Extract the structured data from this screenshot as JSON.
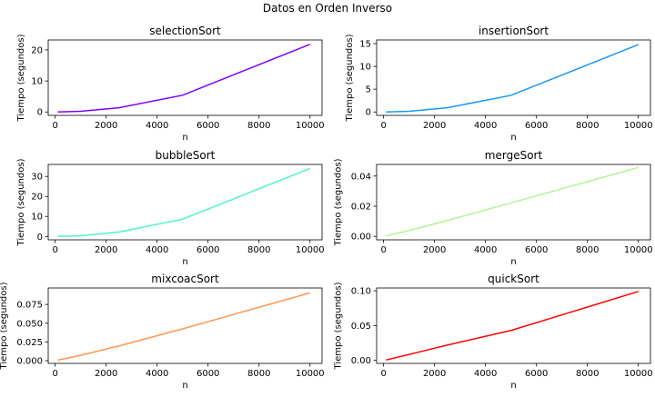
{
  "figure": {
    "suptitle": "Datos en Orden Inverso"
  },
  "chart_data": [
    {
      "type": "line",
      "title": "selectionSort",
      "xlabel": "n",
      "ylabel": "Tiempo (segundos)",
      "color": "#7f00ff",
      "x": [
        100,
        1000,
        2500,
        5000,
        10000
      ],
      "y": [
        0.002,
        0.22,
        1.35,
        5.4,
        21.8
      ],
      "xlim": [
        -273,
        10473
      ],
      "ylim": [
        -1.1,
        23.2
      ],
      "xticks": [
        0,
        2000,
        4000,
        6000,
        8000,
        10000
      ],
      "xtick_labels": [
        "0",
        "2000",
        "4000",
        "6000",
        "8000",
        "10000"
      ],
      "yticks": [
        0,
        10,
        20
      ],
      "ytick_labels": [
        "0",
        "10",
        "20"
      ],
      "grid": false
    },
    {
      "type": "line",
      "title": "insertionSort",
      "xlabel": "n",
      "ylabel": "Tiempo (segundos)",
      "color": "#1996f3",
      "x": [
        100,
        1000,
        2500,
        5000,
        10000
      ],
      "y": [
        0.001,
        0.15,
        0.92,
        3.65,
        14.8
      ],
      "xlim": [
        -273,
        10473
      ],
      "ylim": [
        -0.75,
        15.8
      ],
      "xticks": [
        0,
        2000,
        4000,
        6000,
        8000,
        10000
      ],
      "xtick_labels": [
        "0",
        "2000",
        "4000",
        "6000",
        "8000",
        "10000"
      ],
      "yticks": [
        0,
        5,
        10,
        15
      ],
      "ytick_labels": [
        "0",
        "5",
        "10",
        "15"
      ],
      "grid": false
    },
    {
      "type": "line",
      "title": "bubbleSort",
      "xlabel": "n",
      "ylabel": "Tiempo (segundos)",
      "color": "#4df3ce",
      "x": [
        100,
        1000,
        2500,
        5000,
        10000
      ],
      "y": [
        0.003,
        0.35,
        2.2,
        8.6,
        34.0
      ],
      "xlim": [
        -273,
        10473
      ],
      "ylim": [
        -1.7,
        36.0
      ],
      "xticks": [
        0,
        2000,
        4000,
        6000,
        8000,
        10000
      ],
      "xtick_labels": [
        "0",
        "2000",
        "4000",
        "6000",
        "8000",
        "10000"
      ],
      "yticks": [
        0,
        10,
        20,
        30
      ],
      "ytick_labels": [
        "0",
        "10",
        "20",
        "30"
      ],
      "grid": false
    },
    {
      "type": "line",
      "title": "mergeSort",
      "xlabel": "n",
      "ylabel": "Tiempo (segundos)",
      "color": "#b2f396",
      "x": [
        100,
        1000,
        2500,
        5000,
        10000
      ],
      "y": [
        0.0003,
        0.0039,
        0.0105,
        0.0222,
        0.0457
      ],
      "xlim": [
        -273,
        10473
      ],
      "ylim": [
        -0.0023,
        0.0477
      ],
      "xticks": [
        0,
        2000,
        4000,
        6000,
        8000,
        10000
      ],
      "xtick_labels": [
        "0",
        "2000",
        "4000",
        "6000",
        "8000",
        "10000"
      ],
      "yticks": [
        0,
        0.02,
        0.04
      ],
      "ytick_labels": [
        "0.00",
        "0.02",
        "0.04"
      ],
      "grid": false
    },
    {
      "type": "line",
      "title": "mixcoacSort",
      "xlabel": "n",
      "ylabel": "Tiempo (segundos)",
      "color": "#ff964f",
      "x": [
        100,
        1000,
        2500,
        5000,
        10000
      ],
      "y": [
        0.0008,
        0.0072,
        0.0196,
        0.0425,
        0.0905
      ],
      "xlim": [
        -273,
        10473
      ],
      "ylim": [
        -0.0036,
        0.097
      ],
      "xticks": [
        0,
        2000,
        4000,
        6000,
        8000,
        10000
      ],
      "xtick_labels": [
        "0",
        "2000",
        "4000",
        "6000",
        "8000",
        "10000"
      ],
      "yticks": [
        0,
        0.025,
        0.05,
        0.075
      ],
      "ytick_labels": [
        "0.000",
        "0.025",
        "0.050",
        "0.075"
      ],
      "grid": false
    },
    {
      "type": "line",
      "title": "quickSort",
      "xlabel": "n",
      "ylabel": "Tiempo (segundos)",
      "color": "#ff0000",
      "x": [
        100,
        1000,
        2500,
        5000,
        10000
      ],
      "y": [
        0.0006,
        0.0085,
        0.022,
        0.043,
        0.099
      ],
      "xlim": [
        -273,
        10473
      ],
      "ylim": [
        -0.0043,
        0.104
      ],
      "xticks": [
        0,
        2000,
        4000,
        6000,
        8000,
        10000
      ],
      "xtick_labels": [
        "0",
        "2000",
        "4000",
        "6000",
        "8000",
        "10000"
      ],
      "yticks": [
        0,
        0.05,
        0.1
      ],
      "ytick_labels": [
        "0.00",
        "0.05",
        "0.10"
      ],
      "grid": false
    }
  ]
}
